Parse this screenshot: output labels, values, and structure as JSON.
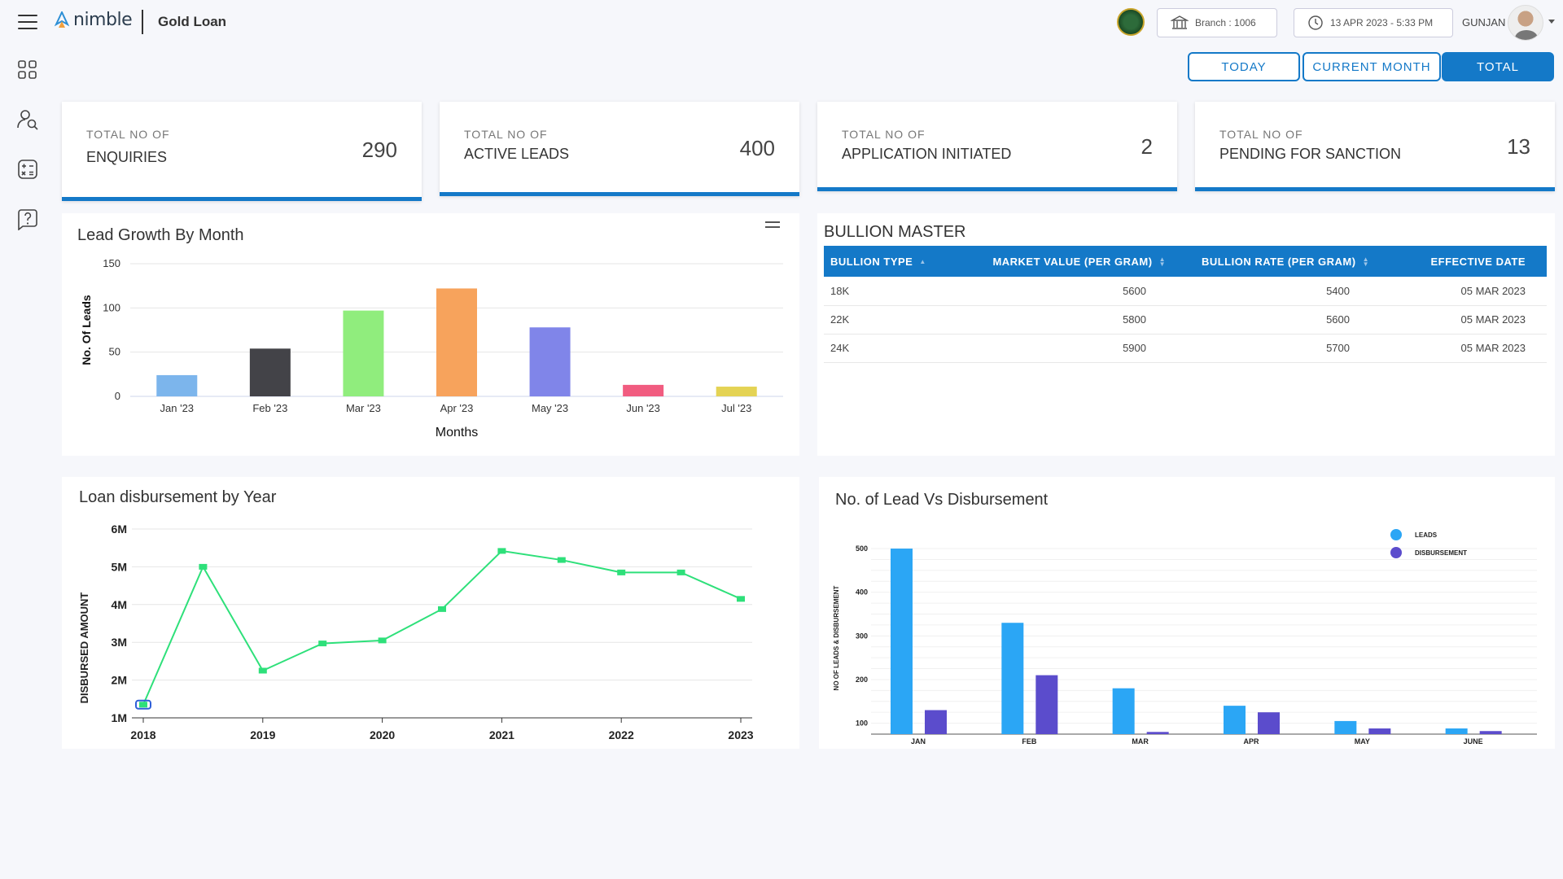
{
  "header": {
    "app_name": "Gold Loan",
    "logo_text": "nimble",
    "branch": "Branch : 1006",
    "datetime": "13 APR 2023 - 5:33 PM",
    "username": "GUNJAN"
  },
  "sidebar": {
    "items": [
      {
        "icon": "dashboard-grid-icon"
      },
      {
        "icon": "user-search-icon"
      },
      {
        "icon": "calculator-icon"
      },
      {
        "icon": "help-icon"
      }
    ]
  },
  "filters": {
    "today": "TODAY",
    "current_month": "CURRENT MONTH",
    "total": "TOTAL",
    "active": "TOTAL"
  },
  "kpis": [
    {
      "line1": "TOTAL NO OF",
      "line2": "ENQUIRIES",
      "value": "290"
    },
    {
      "line1": "TOTAL NO OF",
      "line2": "ACTIVE LEADS",
      "value": "400"
    },
    {
      "line1": "TOTAL NO OF",
      "line2": "APPLICATION INITIATED",
      "value": "2"
    },
    {
      "line1": "TOTAL NO OF",
      "line2": "PENDING FOR SANCTION",
      "value": "13"
    }
  ],
  "bullion": {
    "title": "BULLION MASTER",
    "columns": [
      "BULLION TYPE",
      "MARKET VALUE (PER GRAM)",
      "BULLION RATE (PER GRAM)",
      "EFFECTIVE DATE"
    ],
    "rows": [
      [
        "18K",
        "5600",
        "5400",
        "05 MAR 2023"
      ],
      [
        "22K",
        "5800",
        "5600",
        "05 MAR 2023"
      ],
      [
        "24K",
        "5900",
        "5700",
        "05 MAR 2023"
      ]
    ]
  },
  "chart_data": [
    {
      "type": "bar",
      "title": "Lead Growth By Month",
      "xlabel": "Months",
      "ylabel": "No. Of Leads",
      "categories": [
        "Jan '23",
        "Feb '23",
        "Mar '23",
        "Apr '23",
        "May '23",
        "Jun '23",
        "Jul '23"
      ],
      "values": [
        24,
        54,
        97,
        122,
        78,
        13,
        11
      ],
      "colors": [
        "#7cb5ec",
        "#434348",
        "#90ed7d",
        "#f7a35c",
        "#8085e9",
        "#f15c80",
        "#e4d354"
      ],
      "ylim": [
        0,
        150
      ],
      "yticks": [
        0,
        50,
        100,
        150
      ],
      "grid": true
    },
    {
      "type": "line",
      "title": "Loan disbursement by Year",
      "xlabel": "",
      "ylabel": "DISBURSED AMOUNT",
      "x": [
        2018.0,
        2018.5,
        2019.0,
        2019.5,
        2020.0,
        2020.5,
        2021.0,
        2021.5,
        2022.0,
        2022.5,
        2023.0
      ],
      "values": [
        1.35,
        5.0,
        2.25,
        2.97,
        3.05,
        3.88,
        5.42,
        5.18,
        4.85,
        4.85,
        4.15
      ],
      "xticks": [
        "2018",
        "2019",
        "2020",
        "2021",
        "2022",
        "2023"
      ],
      "yticks": [
        "1M",
        "2M",
        "3M",
        "4M",
        "5M",
        "6M"
      ],
      "ylim": [
        1,
        6
      ],
      "color": "#2ee07a",
      "grid": true
    },
    {
      "type": "bar",
      "title": "No. of Lead Vs Disbursement",
      "xlabel": "",
      "ylabel": "NO OF LEADS & DISBURSEMENT",
      "categories": [
        "JAN",
        "FEB",
        "MAR",
        "APR",
        "MAY",
        "JUNE"
      ],
      "series": [
        {
          "name": "LEADS",
          "values": [
            500,
            330,
            180,
            140,
            105,
            88
          ],
          "color": "#2ba6f5"
        },
        {
          "name": "DISBURSEMENT",
          "values": [
            130,
            210,
            80,
            125,
            88,
            82
          ],
          "color": "#5b4ccc"
        }
      ],
      "yticks": [
        100,
        200,
        300,
        400,
        500
      ],
      "ylim": [
        75,
        515
      ],
      "legend": "top-right",
      "grid": true
    }
  ]
}
